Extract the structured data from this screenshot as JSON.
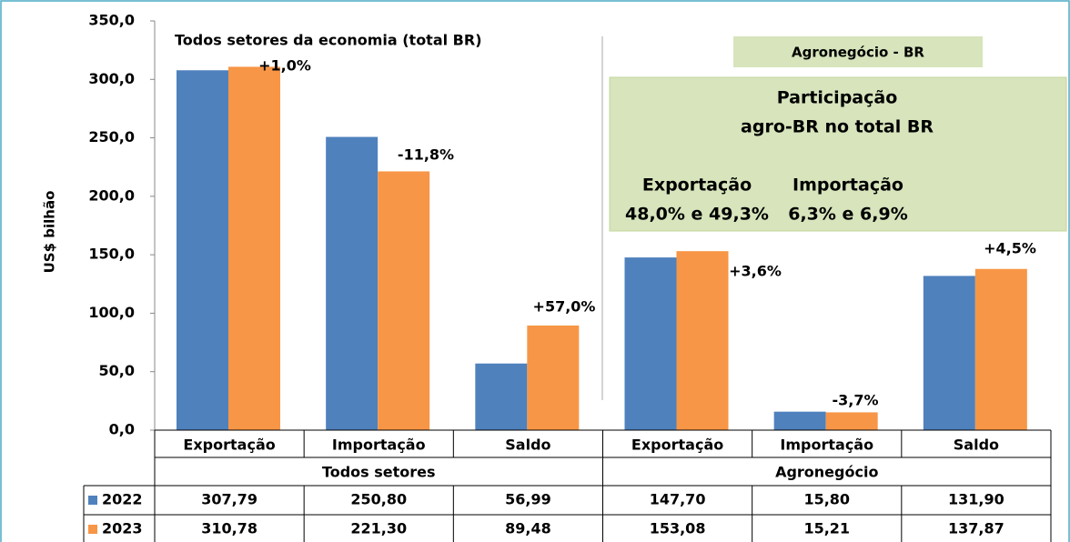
{
  "chart_data": {
    "type": "bar",
    "y_label": "US$  bilhão",
    "categories": [
      "Exportação",
      "Importação",
      "Saldo",
      "Exportação",
      "Importação",
      "Saldo"
    ],
    "groups": [
      "Todos setores",
      "Agronegócio"
    ],
    "series": [
      {
        "name": "2022",
        "color": "#4f81bd",
        "values": [
          307.79,
          250.8,
          56.99,
          147.7,
          15.8,
          131.9
        ],
        "value_labels": [
          "307,79",
          "250,80",
          "56,99",
          "147,70",
          "15,80",
          "131,90"
        ]
      },
      {
        "name": "2023",
        "color": "#f79646",
        "values": [
          310.78,
          221.3,
          89.48,
          153.08,
          15.21,
          137.87
        ],
        "value_labels": [
          "310,78",
          "221,30",
          "89,48",
          "153,08",
          "15,21",
          "137,87"
        ]
      }
    ],
    "ylim": [
      0,
      350
    ],
    "yticks": [
      {
        "value": 0,
        "label": "0,0"
      },
      {
        "value": 50,
        "label": "50,0"
      },
      {
        "value": 100,
        "label": "100,0"
      },
      {
        "value": 150,
        "label": "150,0"
      },
      {
        "value": 200,
        "label": "200,0"
      },
      {
        "value": 250,
        "label": "250,0"
      },
      {
        "value": 300,
        "label": "300,0"
      },
      {
        "value": 350,
        "label": "350,0"
      }
    ],
    "annotations": [
      "+1,0%",
      "-11,8%",
      "+57,0%",
      "+3,6%",
      "-3,7%",
      "+4,5%"
    ],
    "panel_title": "Todos setores da economia (total BR)",
    "agro_title": "Agronegócio - BR",
    "box": {
      "line1": "Participação",
      "line2": "agro-BR no total BR",
      "export_label": "Exportação",
      "import_label": "Importação",
      "export_value": "48,0% e 49,3%",
      "import_value": "6,3% e 6,9%"
    }
  }
}
